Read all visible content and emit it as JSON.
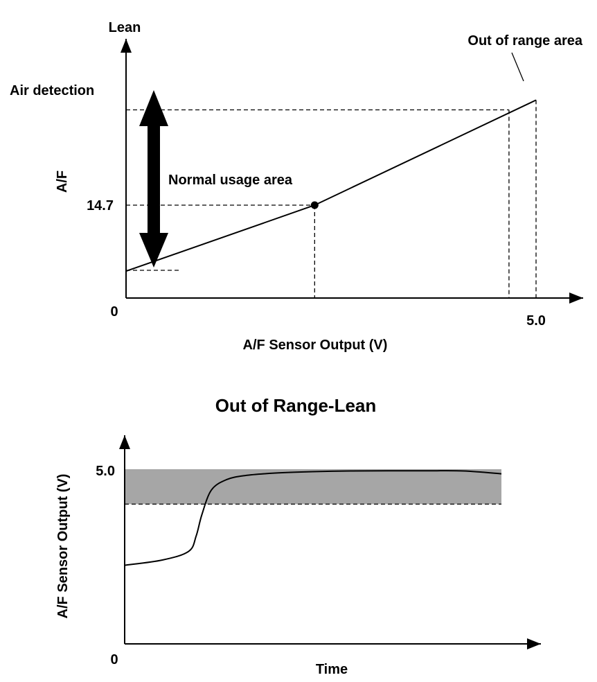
{
  "chart_data": [
    {
      "type": "line",
      "ylabel": "A/F",
      "y_top_label": "Lean",
      "xlabel": "A/F Sensor Output (V)",
      "origin_label": "0",
      "x_tick_label": "5.0",
      "y_tick_label": "14.7",
      "air_detection_label": "Air detection",
      "normal_usage_label": "Normal usage area",
      "out_of_range_label": "Out of range area",
      "line_points": [
        {
          "x": 0.0,
          "y": 12.0
        },
        {
          "x": 2.3,
          "y": 14.7
        },
        {
          "x": 5.0,
          "y": 19.0
        }
      ],
      "normal_usage_point": {
        "x": 2.3,
        "y": 14.7
      },
      "air_detection_point": {
        "x": 4.67,
        "y": 18.6
      },
      "out_of_range_x": [
        4.67,
        5.0
      ],
      "xlim": [
        0,
        5.5
      ],
      "ylim": [
        10.9,
        19.5
      ],
      "grid": false,
      "colors": {
        "line": "#000000",
        "arrow": "#000000"
      }
    },
    {
      "type": "line",
      "title": "Out of Range-Lean",
      "ylabel": "A/F Sensor Output (V)",
      "xlabel": "Time",
      "origin_label": "0",
      "y_tick_label": "5.0",
      "xlim": [
        0,
        100
      ],
      "ylim": [
        0,
        6.0
      ],
      "band": {
        "from": 4.0,
        "to": 5.0,
        "color": "#a6a6a6"
      },
      "series": [
        {
          "x": [
            0,
            10,
            17,
            19,
            20.5,
            23,
            27,
            32,
            40,
            50,
            60,
            70,
            80,
            90,
            100
          ],
          "y": [
            2.25,
            2.4,
            2.65,
            3.1,
            3.7,
            4.4,
            4.7,
            4.82,
            4.89,
            4.93,
            4.95,
            4.955,
            4.955,
            4.95,
            4.87
          ]
        }
      ],
      "grid": false,
      "colors": {
        "line": "#000000"
      }
    }
  ]
}
